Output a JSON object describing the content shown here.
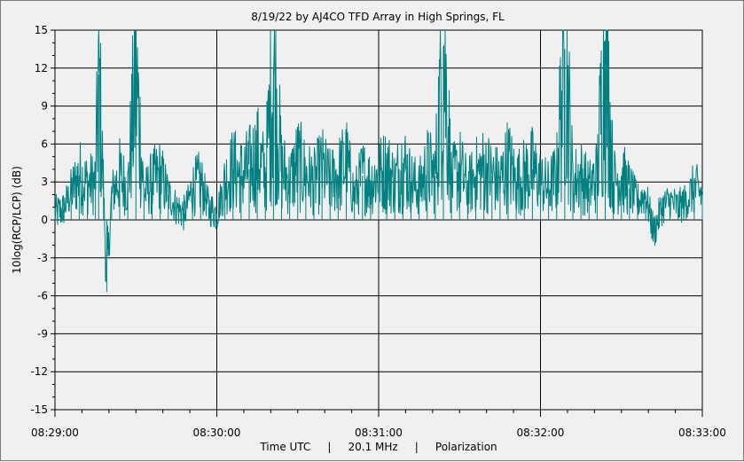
{
  "chart_data": {
    "type": "line",
    "title": "8/19/22  by  AJ4CO TFD Array  in  High Springs, FL",
    "xlabel": "Time UTC     |     20.1 MHz     |     Polarization",
    "ylabel": "10log(RCP/LCP) (dB)",
    "ylim": [
      -15,
      15
    ],
    "yticks": [
      15,
      12,
      9,
      6,
      3,
      0,
      -3,
      -6,
      -9,
      -12,
      -15
    ],
    "xlim_minutes": [
      0,
      4
    ],
    "xticks": [
      {
        "minute": 0,
        "label": "08:29:00"
      },
      {
        "minute": 1,
        "label": "08:30:00"
      },
      {
        "minute": 2,
        "label": "08:31:00"
      },
      {
        "minute": 3,
        "label": "08:32:00"
      },
      {
        "minute": 4,
        "label": "08:33:00"
      }
    ],
    "grid": true,
    "series": [
      {
        "name": "Polarization",
        "color": "#008080",
        "sampling": "noisy trace; representative envelope values in dB at the given minute offsets",
        "points": [
          [
            0.0,
            0.5
          ],
          [
            0.05,
            0.8
          ],
          [
            0.1,
            2.2
          ],
          [
            0.15,
            3.5
          ],
          [
            0.2,
            2.8
          ],
          [
            0.25,
            3.0
          ],
          [
            0.27,
            11.5
          ],
          [
            0.3,
            2.5
          ],
          [
            0.32,
            -5.7
          ],
          [
            0.35,
            2.0
          ],
          [
            0.4,
            3.5
          ],
          [
            0.45,
            2.5
          ],
          [
            0.5,
            11.5
          ],
          [
            0.55,
            2.0
          ],
          [
            0.6,
            3.0
          ],
          [
            0.65,
            3.5
          ],
          [
            0.7,
            2.0
          ],
          [
            0.75,
            1.0
          ],
          [
            0.8,
            0.5
          ],
          [
            0.85,
            2.5
          ],
          [
            0.9,
            3.0
          ],
          [
            0.95,
            1.0
          ],
          [
            1.0,
            0.5
          ],
          [
            1.05,
            3.0
          ],
          [
            1.1,
            4.0
          ],
          [
            1.15,
            3.5
          ],
          [
            1.2,
            4.0
          ],
          [
            1.25,
            5.0
          ],
          [
            1.3,
            3.5
          ],
          [
            1.35,
            12.0
          ],
          [
            1.4,
            4.0
          ],
          [
            1.45,
            3.0
          ],
          [
            1.5,
            4.5
          ],
          [
            1.55,
            3.5
          ],
          [
            1.6,
            3.0
          ],
          [
            1.65,
            4.0
          ],
          [
            1.7,
            3.0
          ],
          [
            1.75,
            3.5
          ],
          [
            1.8,
            4.5
          ],
          [
            1.85,
            2.0
          ],
          [
            1.9,
            3.5
          ],
          [
            1.95,
            3.0
          ],
          [
            2.0,
            3.5
          ],
          [
            2.05,
            4.0
          ],
          [
            2.1,
            3.0
          ],
          [
            2.15,
            4.5
          ],
          [
            2.2,
            3.0
          ],
          [
            2.25,
            2.5
          ],
          [
            2.3,
            4.0
          ],
          [
            2.35,
            3.5
          ],
          [
            2.4,
            13.7
          ],
          [
            2.45,
            3.0
          ],
          [
            2.5,
            4.0
          ],
          [
            2.55,
            2.5
          ],
          [
            2.6,
            3.5
          ],
          [
            2.65,
            4.0
          ],
          [
            2.7,
            3.5
          ],
          [
            2.75,
            3.0
          ],
          [
            2.8,
            4.5
          ],
          [
            2.85,
            3.0
          ],
          [
            2.9,
            3.5
          ],
          [
            2.95,
            4.0
          ],
          [
            3.0,
            3.0
          ],
          [
            3.05,
            2.5
          ],
          [
            3.1,
            3.5
          ],
          [
            3.15,
            13.5
          ],
          [
            3.2,
            3.0
          ],
          [
            3.25,
            3.5
          ],
          [
            3.3,
            2.5
          ],
          [
            3.35,
            3.5
          ],
          [
            3.4,
            14.2
          ],
          [
            3.45,
            3.0
          ],
          [
            3.5,
            3.5
          ],
          [
            3.55,
            2.5
          ],
          [
            3.6,
            1.5
          ],
          [
            3.65,
            2.0
          ],
          [
            3.7,
            -1.0
          ],
          [
            3.75,
            1.0
          ],
          [
            3.8,
            1.5
          ],
          [
            3.85,
            1.0
          ],
          [
            3.9,
            1.5
          ],
          [
            3.95,
            2.5
          ],
          [
            4.0,
            2.0
          ]
        ]
      }
    ]
  }
}
